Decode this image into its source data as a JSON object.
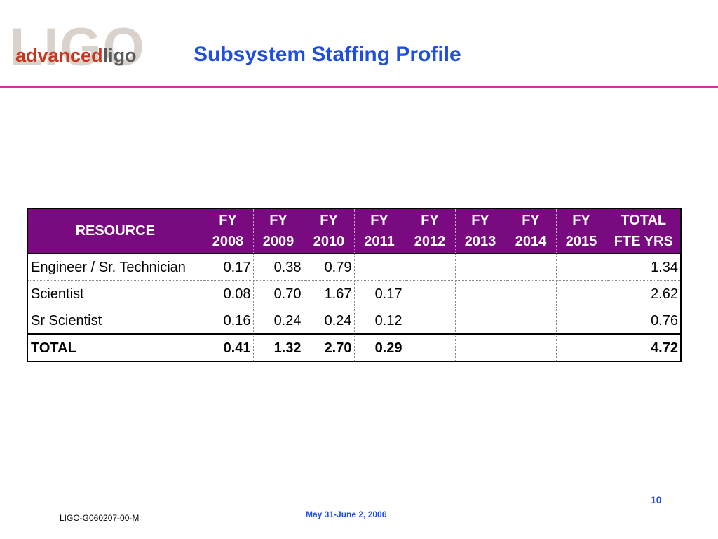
{
  "logo": {
    "watermark": "LIGO",
    "word_advanced": "advanced",
    "word_ligo": "ligo"
  },
  "title": "Subsystem Staffing Profile",
  "colors": {
    "title": "#1f4fe0",
    "rule": "#cc33aa",
    "header_bg": "#7a0a80",
    "logo_red": "#c8341c"
  },
  "table": {
    "header": {
      "resource": "RESOURCE",
      "columns": [
        {
          "line1": "FY",
          "line2": "2008"
        },
        {
          "line1": "FY",
          "line2": "2009"
        },
        {
          "line1": "FY",
          "line2": "2010"
        },
        {
          "line1": "FY",
          "line2": "2011"
        },
        {
          "line1": "FY",
          "line2": "2012"
        },
        {
          "line1": "FY",
          "line2": "2013"
        },
        {
          "line1": "FY",
          "line2": "2014"
        },
        {
          "line1": "FY",
          "line2": "2015"
        },
        {
          "line1": "TOTAL",
          "line2": "FTE YRS"
        }
      ]
    },
    "rows": [
      {
        "label": "Engineer / Sr. Technician",
        "values": [
          "0.17",
          "0.38",
          "0.79",
          "",
          "",
          "",
          "",
          "",
          "1.34"
        ]
      },
      {
        "label": "Scientist",
        "values": [
          "0.08",
          "0.70",
          "1.67",
          "0.17",
          "",
          "",
          "",
          "",
          "2.62"
        ]
      },
      {
        "label": "Sr Scientist",
        "values": [
          "0.16",
          "0.24",
          "0.24",
          "0.12",
          "",
          "",
          "",
          "",
          "0.76"
        ]
      },
      {
        "label": "TOTAL",
        "values": [
          "0.41",
          "1.32",
          "2.70",
          "0.29",
          "",
          "",
          "",
          "",
          "4.72"
        ]
      }
    ]
  },
  "footer": {
    "page_number": "10",
    "date": "May 31-June 2, 2006",
    "doc_id": "LIGO-G060207-00-M"
  }
}
